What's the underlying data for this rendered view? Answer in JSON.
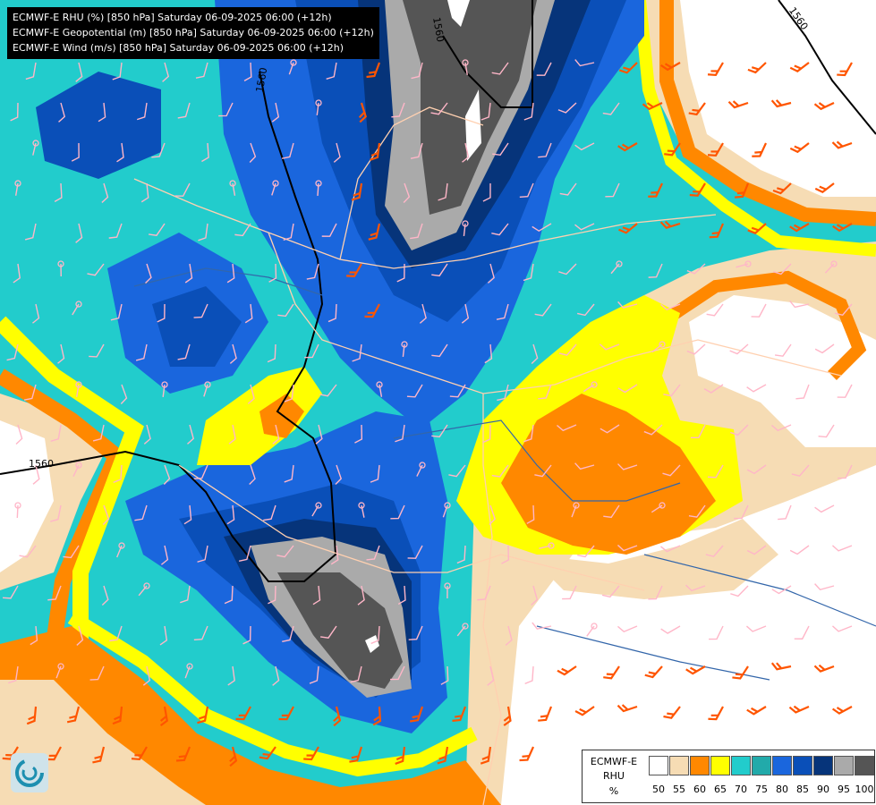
{
  "title_lines": [
    "ECMWF-E RHU (%) [850 hPa] Saturday 06-09-2025 06:00 (+12h)",
    "ECMWF-E Geopotential (m) [850 hPa] Saturday 06-09-2025 06:00 (+12h)",
    "ECMWF-E Wind (m/s) [850 hPa] Saturday 06-09-2025 06:00 (+12h)"
  ],
  "contour_labels": [
    "1560",
    "1560",
    "1560",
    "1560"
  ],
  "legend": {
    "model": "ECMWF-E",
    "variable": "RHU",
    "unit": "%",
    "colors": [
      "#ffffff",
      "#f6dcb4",
      "#ff8800",
      "#ffff00",
      "#22cccc",
      "#22aaaa",
      "#1a66dd",
      "#0a4fb8",
      "#06347a",
      "#aaaaaa",
      "#555555"
    ],
    "ticks": [
      "50",
      "55",
      "60",
      "65",
      "70",
      "75",
      "80",
      "85",
      "90",
      "95",
      "100"
    ]
  },
  "colors": {
    "wind_weak": "#ffb6c8",
    "wind_strong": "#ff5500",
    "wind_max": "#c00020",
    "border": "#ffd0b0",
    "river": "#3366aa",
    "contour": "#000000"
  }
}
